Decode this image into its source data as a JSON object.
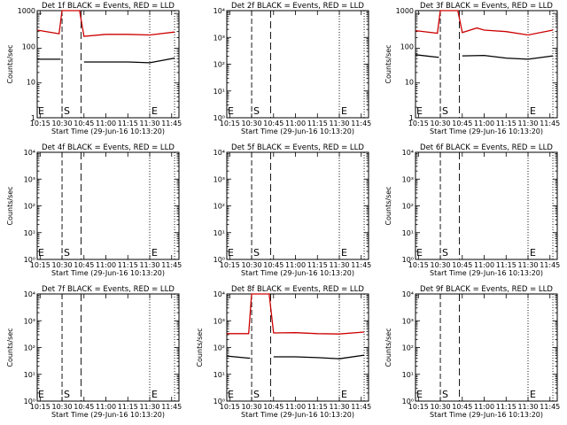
{
  "chart_data": [
    {
      "type": "line",
      "title": "Det 1f BLACK = Events, RED = LLD",
      "ylabel": "Counts/sec",
      "xlabel": "Start Time (29-Jun-16 10:13:20)",
      "x_ticks": [
        "10:15",
        "10:30",
        "10:45",
        "11:00",
        "11:15",
        "11:30",
        "11:45"
      ],
      "y_ticks": [
        "1",
        "10",
        "100",
        "1000"
      ],
      "ylim": [
        1,
        1200
      ],
      "markers": [
        {
          "label": "E",
          "at": "10:13"
        },
        {
          "label": "S",
          "at": "10:30"
        },
        {
          "label": "E",
          "at": "11:30"
        }
      ],
      "series": [
        {
          "color": "#000000",
          "x": [
            "10:13",
            "10:28",
            "10:29",
            "10:43",
            "10:45",
            "11:00",
            "11:15",
            "11:30",
            "11:47"
          ],
          "y": [
            48,
            48,
            48,
            null,
            40,
            40,
            40,
            38,
            52
          ]
        },
        {
          "color": "#cc0000",
          "x": [
            "10:13",
            "10:28",
            "10:30",
            "10:35",
            "10:42",
            "10:45",
            "11:00",
            "11:15",
            "11:30",
            "11:47"
          ],
          "y": [
            330,
            260,
            1200,
            1200,
            1200,
            220,
            250,
            250,
            240,
            290
          ]
        }
      ]
    },
    {
      "type": "line",
      "title": "Det 2f BLACK = Events, RED = LLD",
      "ylabel": "",
      "xlabel": "Start Time (29-Jun-16 10:13:20)",
      "x_ticks": [
        "10:15",
        "10:30",
        "10:45",
        "11:00",
        "11:15",
        "11:30",
        "11:45"
      ],
      "y_ticks": [
        "10⁰",
        "10¹",
        "10²",
        "10³",
        "10⁴"
      ],
      "ylim": [
        1,
        10000
      ],
      "markers": [
        {
          "label": "E",
          "at": "10:13"
        },
        {
          "label": "S",
          "at": "10:30"
        },
        {
          "label": "E",
          "at": "11:30"
        }
      ],
      "series": []
    },
    {
      "type": "line",
      "title": "Det 3f BLACK = Events, RED = LLD",
      "ylabel": "Counts/sec",
      "xlabel": "Start Time (29-Jun-16 10:13:20)",
      "x_ticks": [
        "10:15",
        "10:30",
        "10:45",
        "11:00",
        "11:15",
        "11:30",
        "11:45"
      ],
      "y_ticks": [
        "1",
        "10",
        "100",
        "1000"
      ],
      "ylim": [
        1,
        1200
      ],
      "markers": [
        {
          "label": "E",
          "at": "10:13"
        },
        {
          "label": "S",
          "at": "10:30"
        },
        {
          "label": "E",
          "at": "11:30"
        }
      ],
      "series": [
        {
          "color": "#000000",
          "x": [
            "10:13",
            "10:28",
            "10:29",
            "10:43",
            "10:45",
            "11:00",
            "11:15",
            "11:30",
            "11:47"
          ],
          "y": [
            65,
            55,
            55,
            null,
            60,
            62,
            52,
            48,
            60
          ]
        },
        {
          "color": "#cc0000",
          "x": [
            "10:13",
            "10:28",
            "10:30",
            "10:35",
            "10:42",
            "10:45",
            "10:55",
            "11:00",
            "11:15",
            "11:30",
            "11:47"
          ],
          "y": [
            320,
            270,
            1200,
            1200,
            1200,
            280,
            380,
            330,
            300,
            240,
            330
          ]
        }
      ]
    },
    {
      "type": "line",
      "title": "Det 4f BLACK = Events, RED = LLD",
      "ylabel": "Counts/sec",
      "xlabel": "Start Time (29-Jun-16 10:13:20)",
      "x_ticks": [
        "10:15",
        "10:30",
        "10:45",
        "11:00",
        "11:15",
        "11:30",
        "11:45"
      ],
      "y_ticks": [
        "10⁰",
        "10¹",
        "10²",
        "10³",
        "10⁴"
      ],
      "ylim": [
        1,
        10000
      ],
      "markers": [
        {
          "label": "E",
          "at": "10:13"
        },
        {
          "label": "S",
          "at": "10:30"
        },
        {
          "label": "E",
          "at": "11:30"
        }
      ],
      "series": []
    },
    {
      "type": "line",
      "title": "Det 5f BLACK = Events, RED = LLD",
      "ylabel": "",
      "xlabel": "Start Time (29-Jun-16 10:13:20)",
      "x_ticks": [
        "10:15",
        "10:30",
        "10:45",
        "11:00",
        "11:15",
        "11:30",
        "11:45"
      ],
      "y_ticks": [
        "10⁰",
        "10¹",
        "10²",
        "10³",
        "10⁴"
      ],
      "ylim": [
        1,
        10000
      ],
      "markers": [
        {
          "label": "E",
          "at": "10:13"
        },
        {
          "label": "S",
          "at": "10:30"
        },
        {
          "label": "E",
          "at": "11:30"
        }
      ],
      "series": []
    },
    {
      "type": "line",
      "title": "Det 6f BLACK = Events, RED = LLD",
      "ylabel": "Counts/sec",
      "xlabel": "Start Time (29-Jun-16 10:13:20)",
      "x_ticks": [
        "10:15",
        "10:30",
        "10:45",
        "11:00",
        "11:15",
        "11:30",
        "11:45"
      ],
      "y_ticks": [
        "10⁰",
        "10¹",
        "10²",
        "10³",
        "10⁴"
      ],
      "ylim": [
        1,
        10000
      ],
      "markers": [
        {
          "label": "E",
          "at": "10:13"
        },
        {
          "label": "S",
          "at": "10:30"
        },
        {
          "label": "E",
          "at": "11:30"
        }
      ],
      "series": []
    },
    {
      "type": "line",
      "title": "Det 7f BLACK = Events, RED = LLD",
      "ylabel": "Counts/sec",
      "xlabel": "Start Time (29-Jun-16 10:13:20)",
      "x_ticks": [
        "10:15",
        "10:30",
        "10:45",
        "11:00",
        "11:15",
        "11:30",
        "11:45"
      ],
      "y_ticks": [
        "10⁰",
        "10¹",
        "10²",
        "10³",
        "10⁴"
      ],
      "ylim": [
        1,
        10000
      ],
      "markers": [
        {
          "label": "E",
          "at": "10:13"
        },
        {
          "label": "S",
          "at": "10:30"
        },
        {
          "label": "E",
          "at": "11:30"
        }
      ],
      "series": []
    },
    {
      "type": "line",
      "title": "Det 8f BLACK = Events, RED = LLD",
      "ylabel": "Counts/sec",
      "xlabel": "Start Time (29-Jun-16 10:13:20)",
      "x_ticks": [
        "10:15",
        "10:30",
        "10:45",
        "11:00",
        "11:15",
        "11:30",
        "11:45"
      ],
      "y_ticks": [
        "10⁰",
        "10¹",
        "10²",
        "10³",
        "10⁴"
      ],
      "ylim": [
        1,
        10000
      ],
      "markers": [
        {
          "label": "E",
          "at": "10:13"
        },
        {
          "label": "S",
          "at": "10:30"
        },
        {
          "label": "E",
          "at": "11:30"
        }
      ],
      "series": [
        {
          "color": "#000000",
          "x": [
            "10:13",
            "10:28",
            "10:29",
            "10:43",
            "10:45",
            "11:00",
            "11:15",
            "11:30",
            "11:47"
          ],
          "y": [
            48,
            40,
            40,
            null,
            45,
            45,
            42,
            38,
            52
          ]
        },
        {
          "color": "#cc0000",
          "x": [
            "10:13",
            "10:28",
            "10:30",
            "10:35",
            "10:42",
            "10:45",
            "11:00",
            "11:15",
            "11:30",
            "11:47"
          ],
          "y": [
            330,
            330,
            10000,
            10000,
            10000,
            350,
            360,
            330,
            320,
            380
          ]
        }
      ]
    },
    {
      "type": "line",
      "title": "Det 9f BLACK = Events, RED = LLD",
      "ylabel": "Counts/sec",
      "xlabel": "Start Time (29-Jun-16 10:13:20)",
      "x_ticks": [
        "10:15",
        "10:30",
        "10:45",
        "11:00",
        "11:15",
        "11:30",
        "11:45"
      ],
      "y_ticks": [
        "10⁰",
        "10¹",
        "10²",
        "10³",
        "10⁴"
      ],
      "ylim": [
        1,
        10000
      ],
      "markers": [
        {
          "label": "E",
          "at": "10:13"
        },
        {
          "label": "S",
          "at": "10:30"
        },
        {
          "label": "E",
          "at": "11:30"
        }
      ],
      "series": []
    }
  ]
}
